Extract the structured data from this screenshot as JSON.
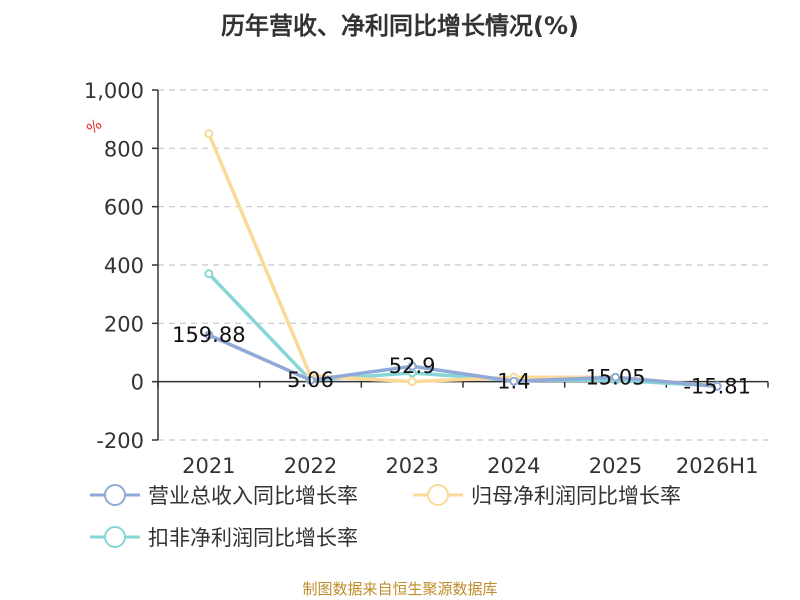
{
  "chart_data": {
    "type": "line",
    "title": "历年营收、净利同比增长情况(%)",
    "ylabel": "%",
    "ylim": [
      -200,
      1000
    ],
    "yticks": [
      -200,
      0,
      200,
      400,
      600,
      800,
      1000
    ],
    "ytick_labels": [
      "-200",
      "0",
      "200",
      "400",
      "600",
      "800",
      "1,000"
    ],
    "categories": [
      "2021",
      "2022",
      "2023",
      "2024",
      "2025",
      "2026H1"
    ],
    "grid": true,
    "series": [
      {
        "name": "营业总收入同比增长率",
        "color": "#8fa9d8",
        "values": [
          159.88,
          5.06,
          52.9,
          1.4,
          15.05,
          -15.81
        ]
      },
      {
        "name": "归母净利润同比增长率",
        "color": "#fad999",
        "values": [
          850,
          20,
          0,
          15,
          15,
          -15
        ]
      },
      {
        "name": "扣非净利润同比增长率",
        "color": "#86d6d6",
        "values": [
          370,
          5,
          30,
          5,
          5,
          -15
        ]
      }
    ],
    "data_labels": [
      "159.88",
      "5.06",
      "52.9",
      "1.4",
      "15.05",
      "-15.81"
    ]
  },
  "legend": [
    "营业总收入同比增长率",
    "归母净利润同比增长率",
    "扣非净利润同比增长率"
  ],
  "source": "制图数据来自恒生聚源数据库"
}
